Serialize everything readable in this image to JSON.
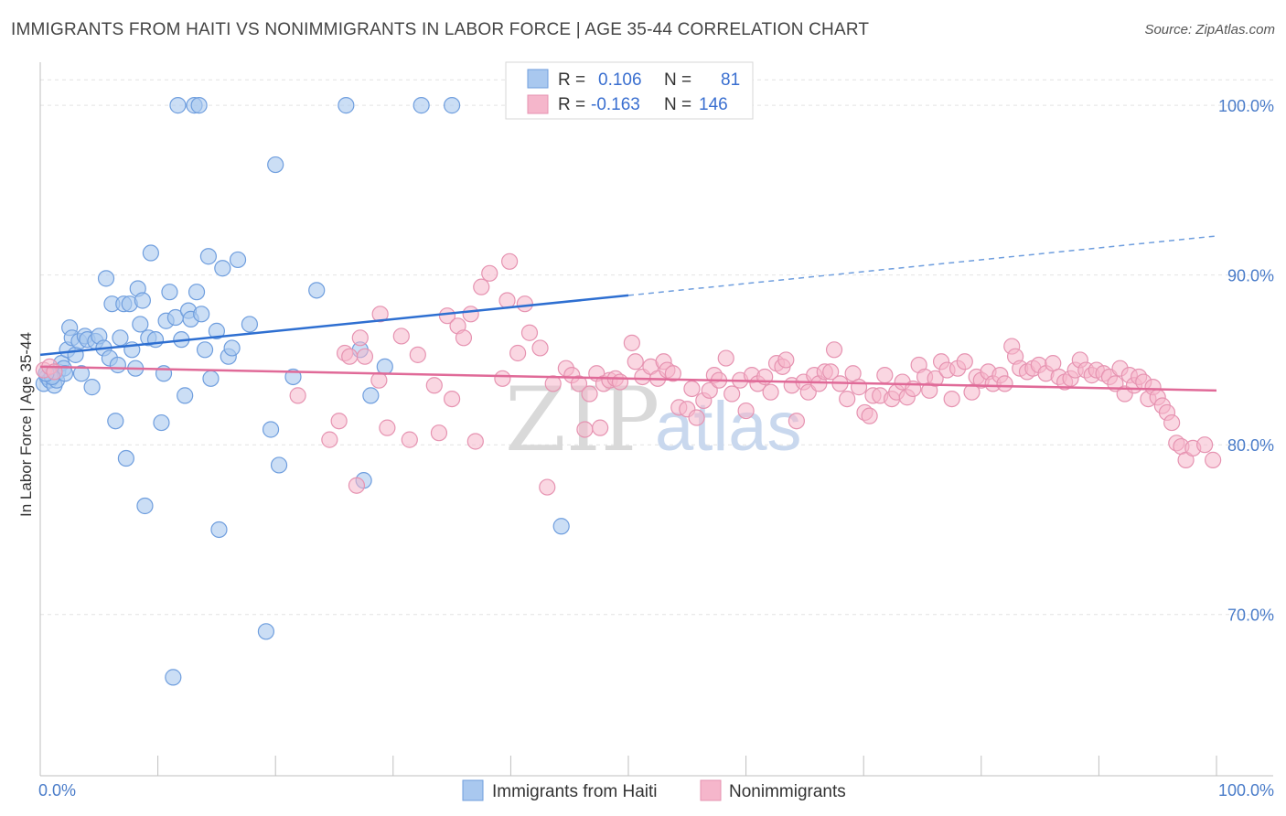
{
  "title": "IMMIGRANTS FROM HAITI VS NONIMMIGRANTS IN LABOR FORCE | AGE 35-44 CORRELATION CHART",
  "source": "Source: ZipAtlas.com",
  "watermark": {
    "zip": "ZIP",
    "atlas": "atlas"
  },
  "colors": {
    "blue": "#4a86d8",
    "blue_fill": "#a9c8ef",
    "pink": "#e06a98",
    "pink_fill": "#f5b6cb",
    "axis_text": "#4a7cc9"
  },
  "chart_data": {
    "type": "scatter",
    "title": "IMMIGRANTS FROM HAITI VS NONIMMIGRANTS IN LABOR FORCE | AGE 35-44 CORRELATION CHART",
    "xlabel": "",
    "ylabel": "In Labor Force | Age 35-44",
    "xlim": [
      0,
      100
    ],
    "ylim": [
      60.5,
      102
    ],
    "x_tick_labels": [
      "0.0%",
      "100.0%"
    ],
    "y_ticks": [
      70,
      80,
      90,
      100
    ],
    "y_tick_labels": [
      "70.0%",
      "80.0%",
      "90.0%",
      "100.0%"
    ],
    "grid": true,
    "legend": {
      "position": "top-center",
      "entries": [
        {
          "r_label": "R =",
          "r_value": "0.106",
          "n_label": "N =",
          "n_value": "81"
        },
        {
          "r_label": "R =",
          "r_value": "-0.163",
          "n_label": "N =",
          "n_value": "146"
        }
      ]
    },
    "bottom_legend": [
      "Immigrants from Haiti",
      "Nonimmigrants"
    ],
    "series": [
      {
        "name": "Immigrants from Haiti",
        "color": "#4a86d8",
        "trend": {
          "x0": 0,
          "y0": 85.3,
          "x1": 50,
          "y1": 88.8,
          "dashed_to": 100,
          "dashed_y": 92.3
        },
        "points": [
          [
            0.3,
            83.6
          ],
          [
            0.6,
            84.0
          ],
          [
            0.8,
            83.8
          ],
          [
            1.0,
            84.1
          ],
          [
            1.2,
            83.5
          ],
          [
            1.5,
            84.3
          ],
          [
            1.8,
            84.8
          ],
          [
            2.0,
            84.5
          ],
          [
            2.3,
            85.6
          ],
          [
            2.5,
            86.9
          ],
          [
            2.7,
            86.3
          ],
          [
            3.0,
            85.3
          ],
          [
            3.3,
            86.1
          ],
          [
            3.5,
            84.2
          ],
          [
            3.8,
            86.4
          ],
          [
            4.0,
            86.2
          ],
          [
            4.4,
            83.4
          ],
          [
            4.7,
            86.1
          ],
          [
            5.0,
            86.4
          ],
          [
            5.4,
            85.7
          ],
          [
            5.6,
            89.8
          ],
          [
            5.9,
            85.1
          ],
          [
            6.1,
            88.3
          ],
          [
            6.4,
            81.4
          ],
          [
            6.6,
            84.7
          ],
          [
            6.8,
            86.3
          ],
          [
            7.1,
            88.3
          ],
          [
            7.3,
            79.2
          ],
          [
            7.6,
            88.3
          ],
          [
            7.8,
            85.6
          ],
          [
            8.1,
            84.5
          ],
          [
            8.3,
            89.2
          ],
          [
            8.5,
            87.1
          ],
          [
            8.7,
            88.5
          ],
          [
            8.9,
            76.4
          ],
          [
            9.2,
            86.3
          ],
          [
            9.4,
            91.3
          ],
          [
            9.8,
            86.2
          ],
          [
            10.3,
            81.3
          ],
          [
            10.5,
            84.2
          ],
          [
            10.7,
            87.3
          ],
          [
            11.0,
            89.0
          ],
          [
            11.3,
            66.3
          ],
          [
            11.5,
            87.5
          ],
          [
            11.7,
            100.0
          ],
          [
            12.0,
            86.2
          ],
          [
            12.3,
            82.9
          ],
          [
            12.6,
            87.9
          ],
          [
            12.8,
            87.4
          ],
          [
            13.1,
            100.0
          ],
          [
            13.3,
            89.0
          ],
          [
            13.5,
            100.0
          ],
          [
            13.7,
            87.7
          ],
          [
            14.0,
            85.6
          ],
          [
            14.3,
            91.1
          ],
          [
            14.5,
            83.9
          ],
          [
            15.0,
            86.7
          ],
          [
            15.2,
            75.0
          ],
          [
            15.5,
            90.4
          ],
          [
            16.0,
            85.2
          ],
          [
            16.3,
            85.7
          ],
          [
            16.8,
            90.9
          ],
          [
            17.8,
            87.1
          ],
          [
            19.2,
            69.0
          ],
          [
            19.6,
            80.9
          ],
          [
            20.0,
            96.5
          ],
          [
            20.3,
            78.8
          ],
          [
            21.5,
            84.0
          ],
          [
            23.5,
            89.1
          ],
          [
            26.0,
            100.0
          ],
          [
            27.2,
            85.6
          ],
          [
            27.5,
            77.9
          ],
          [
            28.1,
            82.9
          ],
          [
            29.3,
            84.6
          ],
          [
            32.4,
            100.0
          ],
          [
            35.0,
            100.0
          ],
          [
            44.3,
            75.2
          ],
          [
            1.4,
            83.8
          ],
          [
            2.1,
            84.2
          ],
          [
            1.0,
            84.0
          ],
          [
            0.5,
            84.2
          ]
        ]
      },
      {
        "name": "Nonimmigrants",
        "color": "#e06a98",
        "trend": {
          "x0": 0,
          "y0": 84.6,
          "x1": 100,
          "y1": 83.2
        },
        "points": [
          [
            0.3,
            84.4
          ],
          [
            0.8,
            84.6
          ],
          [
            1.2,
            84.3
          ],
          [
            21.9,
            82.9
          ],
          [
            24.6,
            80.3
          ],
          [
            25.4,
            81.4
          ],
          [
            25.9,
            85.4
          ],
          [
            26.3,
            85.2
          ],
          [
            26.9,
            77.6
          ],
          [
            27.2,
            86.3
          ],
          [
            27.6,
            85.2
          ],
          [
            28.8,
            83.8
          ],
          [
            28.9,
            87.7
          ],
          [
            29.5,
            81.0
          ],
          [
            30.7,
            86.4
          ],
          [
            31.4,
            80.3
          ],
          [
            32.1,
            85.3
          ],
          [
            33.5,
            83.5
          ],
          [
            33.9,
            80.7
          ],
          [
            34.6,
            87.6
          ],
          [
            35.0,
            82.7
          ],
          [
            35.5,
            87.0
          ],
          [
            36.0,
            86.3
          ],
          [
            36.6,
            87.7
          ],
          [
            37.0,
            80.2
          ],
          [
            37.5,
            89.3
          ],
          [
            38.2,
            90.1
          ],
          [
            39.3,
            83.9
          ],
          [
            39.7,
            88.5
          ],
          [
            39.9,
            90.8
          ],
          [
            40.6,
            85.4
          ],
          [
            41.2,
            88.3
          ],
          [
            41.6,
            86.6
          ],
          [
            42.5,
            85.7
          ],
          [
            43.1,
            77.5
          ],
          [
            43.6,
            83.6
          ],
          [
            44.7,
            84.5
          ],
          [
            45.2,
            84.1
          ],
          [
            45.8,
            83.6
          ],
          [
            46.3,
            80.9
          ],
          [
            46.7,
            83.0
          ],
          [
            47.3,
            84.2
          ],
          [
            47.6,
            81.0
          ],
          [
            47.9,
            83.6
          ],
          [
            48.4,
            83.8
          ],
          [
            48.9,
            83.9
          ],
          [
            49.3,
            83.7
          ],
          [
            50.3,
            86.0
          ],
          [
            50.6,
            84.9
          ],
          [
            51.2,
            84.0
          ],
          [
            51.9,
            84.6
          ],
          [
            52.5,
            83.9
          ],
          [
            53.0,
            84.9
          ],
          [
            53.3,
            84.4
          ],
          [
            53.8,
            84.2
          ],
          [
            54.3,
            82.2
          ],
          [
            55.0,
            82.1
          ],
          [
            55.4,
            83.3
          ],
          [
            55.8,
            81.6
          ],
          [
            56.4,
            82.6
          ],
          [
            56.9,
            83.2
          ],
          [
            57.3,
            84.1
          ],
          [
            57.7,
            83.8
          ],
          [
            58.3,
            85.1
          ],
          [
            58.8,
            83.0
          ],
          [
            59.5,
            83.8
          ],
          [
            60.0,
            82.0
          ],
          [
            60.5,
            84.1
          ],
          [
            61.0,
            83.6
          ],
          [
            61.6,
            84.0
          ],
          [
            62.1,
            83.1
          ],
          [
            62.6,
            84.8
          ],
          [
            63.1,
            84.6
          ],
          [
            63.4,
            85.0
          ],
          [
            63.9,
            83.5
          ],
          [
            64.3,
            81.4
          ],
          [
            64.9,
            83.7
          ],
          [
            65.3,
            83.1
          ],
          [
            65.8,
            84.1
          ],
          [
            66.2,
            83.6
          ],
          [
            66.7,
            84.3
          ],
          [
            67.2,
            84.3
          ],
          [
            67.5,
            85.6
          ],
          [
            68.0,
            83.6
          ],
          [
            68.6,
            82.7
          ],
          [
            69.1,
            84.2
          ],
          [
            69.6,
            83.4
          ],
          [
            70.1,
            81.9
          ],
          [
            70.5,
            81.7
          ],
          [
            70.8,
            82.9
          ],
          [
            71.4,
            82.9
          ],
          [
            71.8,
            84.1
          ],
          [
            72.4,
            82.7
          ],
          [
            72.8,
            83.1
          ],
          [
            73.3,
            83.7
          ],
          [
            73.7,
            82.8
          ],
          [
            74.2,
            83.3
          ],
          [
            74.7,
            84.7
          ],
          [
            75.2,
            84.0
          ],
          [
            75.6,
            83.2
          ],
          [
            76.1,
            83.9
          ],
          [
            76.6,
            84.9
          ],
          [
            77.1,
            84.4
          ],
          [
            77.5,
            82.7
          ],
          [
            78.0,
            84.5
          ],
          [
            78.6,
            84.9
          ],
          [
            79.2,
            83.1
          ],
          [
            79.6,
            84.0
          ],
          [
            80.0,
            83.8
          ],
          [
            80.6,
            84.3
          ],
          [
            81.0,
            83.6
          ],
          [
            81.6,
            84.1
          ],
          [
            82.0,
            83.6
          ],
          [
            82.6,
            85.8
          ],
          [
            82.9,
            85.2
          ],
          [
            83.3,
            84.5
          ],
          [
            83.9,
            84.3
          ],
          [
            84.4,
            84.5
          ],
          [
            84.9,
            84.7
          ],
          [
            85.5,
            84.2
          ],
          [
            86.1,
            84.8
          ],
          [
            86.6,
            84.0
          ],
          [
            87.1,
            83.7
          ],
          [
            87.6,
            83.9
          ],
          [
            88.0,
            84.4
          ],
          [
            88.4,
            85.0
          ],
          [
            88.9,
            84.4
          ],
          [
            89.4,
            84.1
          ],
          [
            89.8,
            84.4
          ],
          [
            90.4,
            84.2
          ],
          [
            90.9,
            84.0
          ],
          [
            91.4,
            83.6
          ],
          [
            91.8,
            84.5
          ],
          [
            92.2,
            83.0
          ],
          [
            92.6,
            84.1
          ],
          [
            93.0,
            83.5
          ],
          [
            93.4,
            84.0
          ],
          [
            93.8,
            83.7
          ],
          [
            94.2,
            82.7
          ],
          [
            94.6,
            83.4
          ],
          [
            95.0,
            82.8
          ],
          [
            95.4,
            82.3
          ],
          [
            95.8,
            81.9
          ],
          [
            96.2,
            81.3
          ],
          [
            96.6,
            80.1
          ],
          [
            97.0,
            79.9
          ],
          [
            97.4,
            79.1
          ],
          [
            98.0,
            79.8
          ],
          [
            99.0,
            80.0
          ],
          [
            99.7,
            79.1
          ]
        ]
      }
    ]
  }
}
